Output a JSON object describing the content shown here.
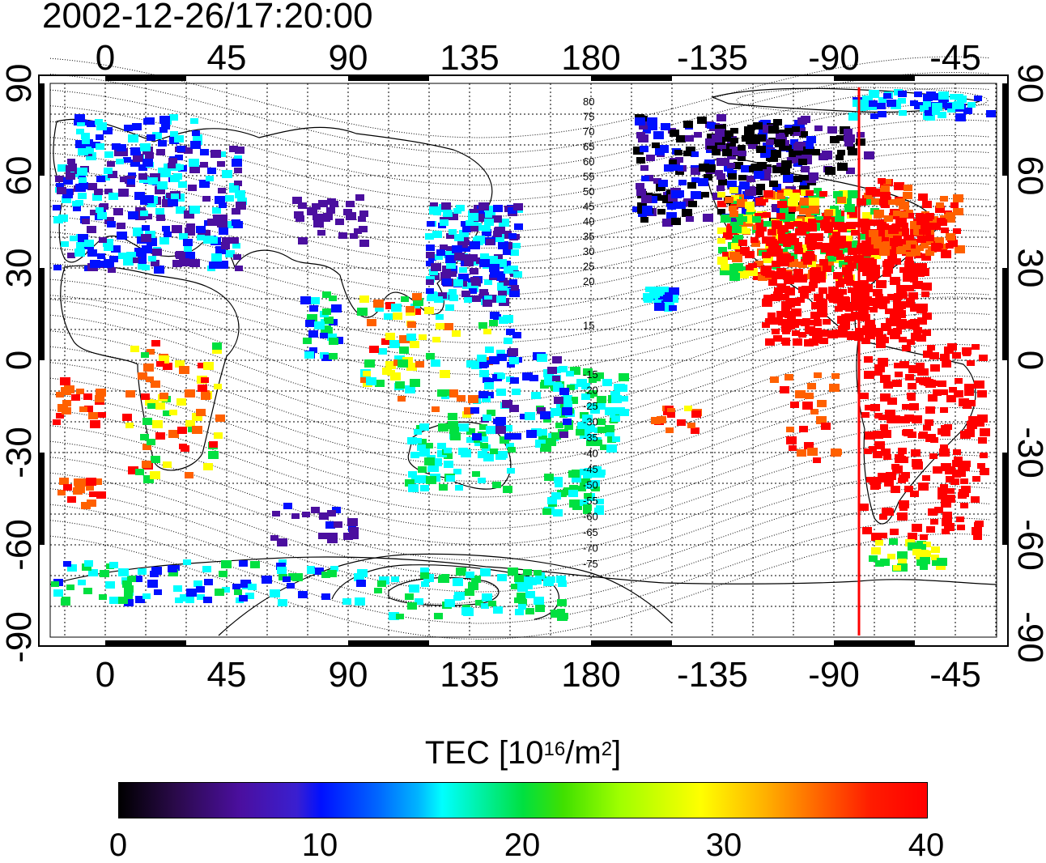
{
  "title": "2002-12-26/17:20:00",
  "map": {
    "top_lon_labels": [
      "0",
      "45",
      "90",
      "135",
      "180",
      "-135",
      "-90",
      "-45"
    ],
    "bottom_lon_labels": [
      "0",
      "45",
      "90",
      "135",
      "180",
      "-135",
      "-90",
      "-45"
    ],
    "left_lat_labels": [
      "90",
      "60",
      "30",
      "0",
      "-30",
      "-60",
      "-90"
    ],
    "right_lat_labels": [
      "90",
      "60",
      "30",
      "0",
      "-30",
      "-60",
      "-90"
    ],
    "north_contour_labels": [
      "80",
      "75",
      "70",
      "65",
      "60",
      "55",
      "50",
      "45",
      "40",
      "35",
      "30",
      "25",
      "20",
      "15"
    ],
    "south_contour_labels": [
      "-15",
      "-20",
      "-25",
      "-30",
      "-35",
      "-40",
      "-45",
      "-50",
      "-55",
      "-60",
      "-65",
      "-70",
      "-75"
    ],
    "terminator_color": "#ff0000",
    "grid_style": "dotted"
  },
  "colorbar": {
    "title_prefix": "TEC  [10",
    "title_exp": "16",
    "title_mid": "/m",
    "title_exp2": "2",
    "title_suffix": "]",
    "ticks": [
      "0",
      "10",
      "20",
      "30",
      "40"
    ],
    "min": 0,
    "max": 40,
    "colormap": [
      "#000000",
      "#4b0f9f",
      "#0010ff",
      "#00ffff",
      "#00e040",
      "#ffff00",
      "#ff6000",
      "#ff0000"
    ]
  }
}
